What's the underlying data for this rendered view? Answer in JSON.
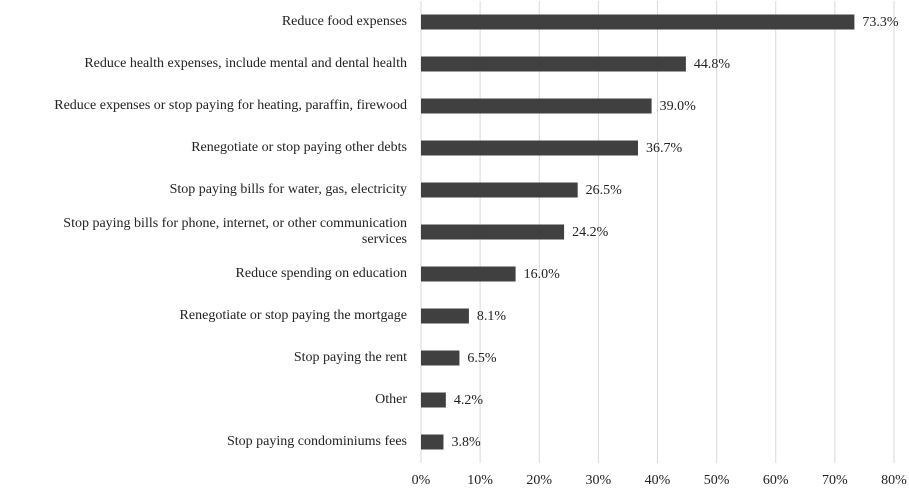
{
  "chart_data": {
    "type": "bar",
    "orientation": "horizontal",
    "categories": [
      "Reduce food expenses",
      "Reduce health expenses, include mental and dental health",
      "Reduce expenses or stop paying for heating, paraffin, firewood",
      "Renegotiate or stop paying other debts",
      "Stop paying bills for water, gas, electricity",
      "Stop paying bills for phone, internet, or other communication services",
      "Reduce spending on education",
      "Renegotiate or stop paying the mortgage",
      "Stop paying the rent",
      "Other",
      "Stop paying condominiums fees"
    ],
    "values": [
      73.3,
      44.8,
      39.0,
      36.7,
      26.5,
      24.2,
      16.0,
      8.1,
      6.5,
      4.2,
      3.8
    ],
    "value_labels": [
      "73.3%",
      "44.8%",
      "39.0%",
      "36.7%",
      "26.5%",
      "24.2%",
      "16.0%",
      "8.1%",
      "6.5%",
      "4.2%",
      "3.8%"
    ],
    "color": "#404040",
    "xlim": [
      0,
      80
    ],
    "xticks": [
      {
        "value": 0,
        "label": "0%"
      },
      {
        "value": 10,
        "label": "10%"
      },
      {
        "value": 20,
        "label": "20%"
      },
      {
        "value": 30,
        "label": "30%"
      },
      {
        "value": 40,
        "label": "40%"
      },
      {
        "value": 50,
        "label": "50%"
      },
      {
        "value": 60,
        "label": "60%"
      },
      {
        "value": 70,
        "label": "70%"
      },
      {
        "value": 80,
        "label": "80%"
      }
    ],
    "grid": true
  }
}
